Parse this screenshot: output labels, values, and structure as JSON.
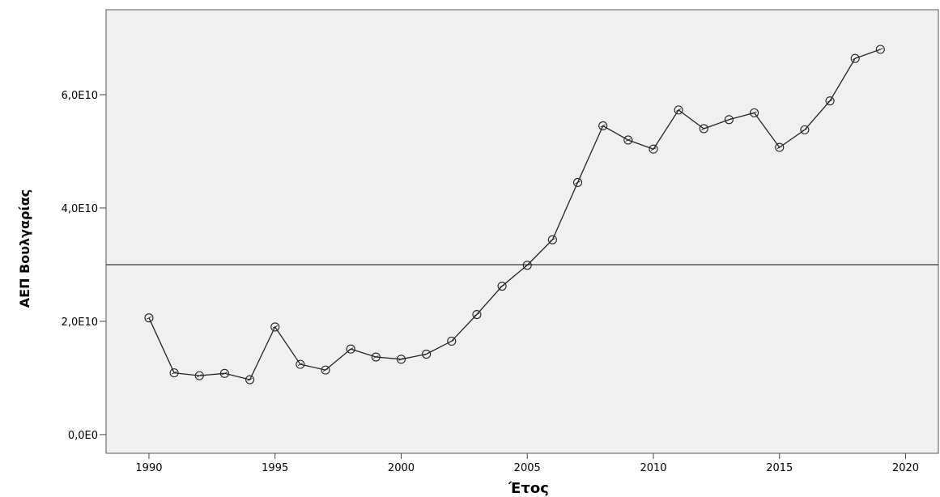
{
  "chart_data": {
    "type": "line",
    "title": "",
    "xlabel": "Έτος",
    "ylabel": "ΑΕΠ Βουλγαρίας",
    "xlim": [
      1988.3,
      2021.3
    ],
    "ylim": [
      -3300000000.0,
      75000000000.0
    ],
    "x_ticks": [
      1990,
      1995,
      2000,
      2005,
      2010,
      2015,
      2020
    ],
    "x_tick_labels": [
      "1990",
      "1995",
      "2000",
      "2005",
      "2010",
      "2015",
      "2020"
    ],
    "y_ticks": [
      0,
      20000000000.0,
      40000000000.0,
      60000000000.0
    ],
    "y_tick_labels": [
      "0,0E0",
      "2,0E10",
      "4,0E10",
      "6,0E10"
    ],
    "reference_line_y": 30000000000.0,
    "grid": false,
    "legend": "none",
    "series": [
      {
        "x": [
          1990,
          1991,
          1992,
          1993,
          1994,
          1995,
          1996,
          1997,
          1998,
          1999,
          2000,
          2001,
          2002,
          2003,
          2004,
          2005,
          2006,
          2007,
          2008,
          2009,
          2010,
          2011,
          2012,
          2013,
          2014,
          2015,
          2016,
          2017,
          2018,
          2019
        ],
        "values": [
          20600000000.0,
          10900000000.0,
          10400000000.0,
          10800000000.0,
          9700000000.0,
          19000000000.0,
          12400000000.0,
          11400000000.0,
          15100000000.0,
          13700000000.0,
          13300000000.0,
          14200000000.0,
          16500000000.0,
          21200000000.0,
          26200000000.0,
          29900000000.0,
          34400000000.0,
          44500000000.0,
          54500000000.0,
          52000000000.0,
          50400000000.0,
          57300000000.0,
          54000000000.0,
          55600000000.0,
          56800000000.0,
          50700000000.0,
          53800000000.0,
          58900000000.0,
          66400000000.0,
          68000000000.0
        ]
      }
    ],
    "colors": {
      "plot_background": "#f0f0f0",
      "line": "#222222",
      "marker_edge": "#222222",
      "reference_line": "#555555"
    }
  }
}
